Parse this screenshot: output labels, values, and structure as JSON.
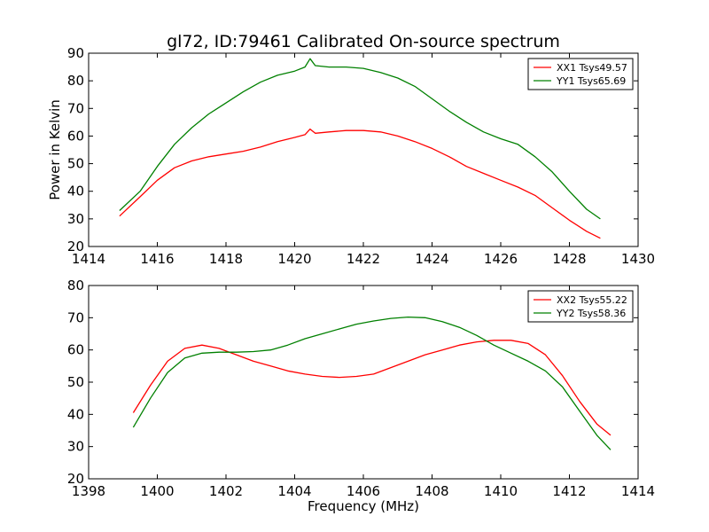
{
  "chart_data": [
    {
      "type": "line",
      "title": "gl72, ID:79461 Calibrated On-source spectrum",
      "xlabel": "",
      "ylabel": "Power in Kelvin",
      "xlim": [
        1414,
        1430
      ],
      "ylim": [
        20,
        90
      ],
      "xticks": [
        "1414",
        "1416",
        "1418",
        "1420",
        "1422",
        "1424",
        "1426",
        "1428",
        "1430"
      ],
      "yticks": [
        "20",
        "30",
        "40",
        "50",
        "60",
        "70",
        "80",
        "90"
      ],
      "legend_position": "top-right",
      "grid": false,
      "series": [
        {
          "name": "XX1 Tsys49.57",
          "color": "#ff0000",
          "x": [
            1414.9,
            1415.5,
            1416.0,
            1416.5,
            1417.0,
            1417.5,
            1418.0,
            1418.5,
            1419.0,
            1419.5,
            1420.0,
            1420.3,
            1420.45,
            1420.6,
            1421.0,
            1421.5,
            1422.0,
            1422.5,
            1423.0,
            1423.5,
            1424.0,
            1424.5,
            1425.0,
            1425.5,
            1426.0,
            1426.5,
            1427.0,
            1427.5,
            1428.0,
            1428.5,
            1428.9
          ],
          "y": [
            31,
            38,
            44,
            48.5,
            51,
            52.5,
            53.5,
            54.5,
            56,
            58,
            59.5,
            60.5,
            62.5,
            61,
            61.5,
            62,
            62,
            61.5,
            60,
            58,
            55.5,
            52.5,
            49,
            46.5,
            44,
            41.5,
            38.5,
            34,
            29.5,
            25.5,
            23
          ]
        },
        {
          "name": "YY1 Tsys65.69",
          "color": "#008000",
          "x": [
            1414.9,
            1415.5,
            1416.0,
            1416.5,
            1417.0,
            1417.5,
            1418.0,
            1418.5,
            1419.0,
            1419.5,
            1420.0,
            1420.3,
            1420.45,
            1420.6,
            1421.0,
            1421.5,
            1422.0,
            1422.5,
            1423.0,
            1423.5,
            1424.0,
            1424.5,
            1425.0,
            1425.5,
            1426.0,
            1426.5,
            1427.0,
            1427.5,
            1428.0,
            1428.5,
            1428.9
          ],
          "y": [
            33,
            40,
            49,
            57,
            63,
            68,
            72,
            76,
            79.5,
            82,
            83.5,
            85,
            88,
            85.5,
            85,
            85,
            84.5,
            83,
            81,
            78,
            73.5,
            69,
            65,
            61.5,
            59,
            57,
            52.5,
            47,
            40,
            33.5,
            30
          ]
        }
      ]
    },
    {
      "type": "line",
      "title": "",
      "xlabel": "Frequency (MHz)",
      "ylabel": "",
      "xlim": [
        1398,
        1414
      ],
      "ylim": [
        20,
        80
      ],
      "xticks": [
        "1398",
        "1400",
        "1402",
        "1404",
        "1406",
        "1408",
        "1410",
        "1412",
        "1414"
      ],
      "yticks": [
        "20",
        "30",
        "40",
        "50",
        "60",
        "70",
        "80"
      ],
      "legend_position": "top-right",
      "grid": false,
      "series": [
        {
          "name": "XX2 Tsys55.22",
          "color": "#ff0000",
          "x": [
            1399.3,
            1399.8,
            1400.3,
            1400.8,
            1401.3,
            1401.8,
            1402.3,
            1402.8,
            1403.3,
            1403.8,
            1404.3,
            1404.8,
            1405.3,
            1405.8,
            1406.3,
            1406.8,
            1407.3,
            1407.8,
            1408.3,
            1408.8,
            1409.3,
            1409.8,
            1410.3,
            1410.8,
            1411.3,
            1411.8,
            1412.3,
            1412.8,
            1413.2
          ],
          "y": [
            40.5,
            49,
            56.5,
            60.5,
            61.5,
            60.5,
            58.5,
            56.5,
            55,
            53.5,
            52.5,
            51.8,
            51.5,
            51.8,
            52.5,
            54.5,
            56.5,
            58.5,
            60,
            61.5,
            62.5,
            63,
            63,
            62,
            58.5,
            52,
            44,
            37,
            33.5
          ]
        },
        {
          "name": "YY2 Tsys58.36",
          "color": "#008000",
          "x": [
            1399.3,
            1399.8,
            1400.3,
            1400.8,
            1401.3,
            1401.8,
            1402.3,
            1402.8,
            1403.3,
            1403.8,
            1404.3,
            1404.8,
            1405.3,
            1405.8,
            1406.3,
            1406.8,
            1407.3,
            1407.8,
            1408.3,
            1408.8,
            1409.3,
            1409.8,
            1410.3,
            1410.8,
            1411.3,
            1411.8,
            1412.3,
            1412.8,
            1413.2
          ],
          "y": [
            36,
            45,
            53,
            57.5,
            59,
            59.3,
            59.3,
            59.5,
            60,
            61.5,
            63.5,
            65,
            66.5,
            68,
            69,
            69.8,
            70.2,
            70,
            68.8,
            67,
            64.5,
            61.5,
            59,
            56.5,
            53.5,
            48.5,
            41,
            33.5,
            29
          ]
        }
      ]
    }
  ]
}
